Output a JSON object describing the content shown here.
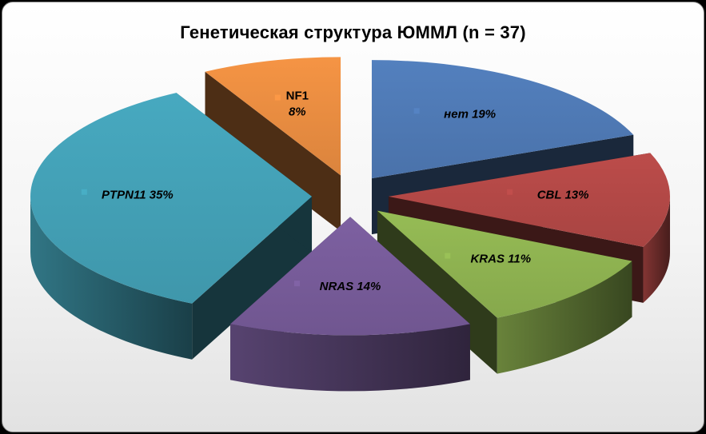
{
  "chart_data": {
    "type": "pie",
    "title": "Генетическая структура ЮММЛ (n = 37)",
    "slices": [
      {
        "label": "нет",
        "value": 19,
        "value_label": "19%",
        "color": "#4a72aa"
      },
      {
        "label": "CBL",
        "value": 13,
        "value_label": "13%",
        "color": "#a84442"
      },
      {
        "label": "KRAS",
        "value": 11,
        "value_label": "11%",
        "color": "#86a84c"
      },
      {
        "label": "NRAS",
        "value": 14,
        "value_label": "14%",
        "color": "#705690"
      },
      {
        "label": "PTPN11",
        "value": 35,
        "value_label": "35%",
        "color": "#3f97ab"
      },
      {
        "label": "NF1",
        "value": 8,
        "value_label": "8%",
        "color": "#db843d"
      }
    ],
    "exploded": true,
    "three_d": true,
    "legend": "none"
  }
}
